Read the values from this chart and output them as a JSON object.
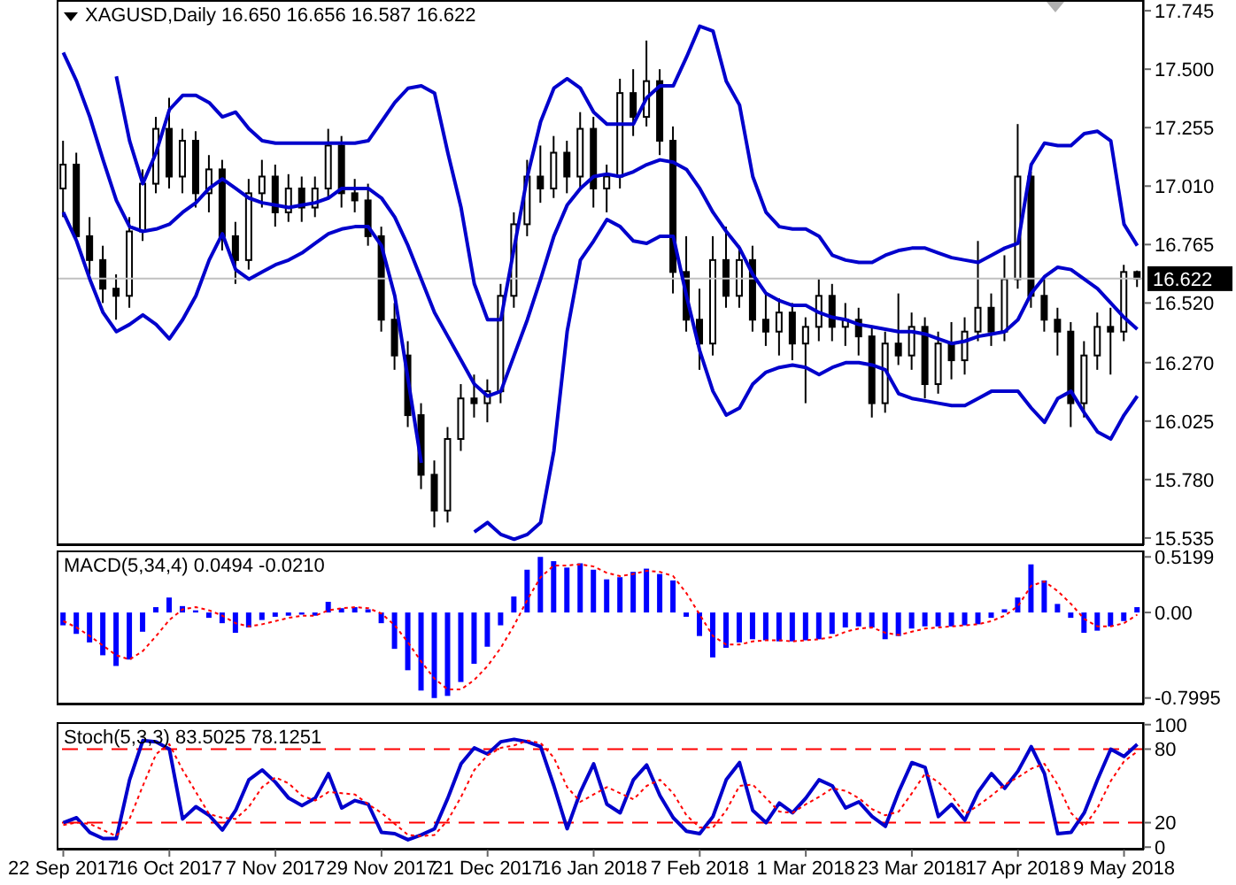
{
  "chart_data": [
    {
      "type": "candlestick",
      "title": "XAGUSD,Daily 16.650 16.656 16.587 16.622",
      "tick_labels": "y",
      "categories": [
        null,
        null,
        null,
        null,
        null,
        null,
        null,
        null,
        null,
        null,
        null,
        null,
        null,
        null,
        null,
        null,
        null,
        null,
        null,
        null,
        null,
        null,
        null,
        null,
        null,
        null,
        null,
        null,
        null,
        null,
        null,
        null,
        null,
        null,
        null,
        null,
        null,
        null,
        null,
        null,
        null,
        null,
        null,
        null,
        null,
        null,
        null,
        null,
        null,
        null,
        null,
        null,
        null,
        null,
        null,
        null,
        null,
        null,
        null,
        null,
        null,
        null,
        null,
        null,
        null,
        null,
        null,
        null,
        null,
        null,
        null,
        null,
        null,
        null,
        null,
        null,
        null,
        null,
        null,
        null,
        null,
        null
      ],
      "ylim": [
        15.505,
        17.79
      ],
      "yticks": [
        15.535,
        {
          "value": 15.78,
          "label": "15.780"
        },
        16.025,
        {
          "value": 16.27,
          "label": "16.270"
        },
        {
          "value": 16.52,
          "label": "16.520"
        },
        16.765,
        {
          "value": 17.01,
          "label": "17.010"
        },
        17.255,
        {
          "value": 17.5,
          "label": "17.500"
        },
        17.745
      ],
      "ref_lines": [
        {
          "axis": "y",
          "value": 16.622,
          "label": "16.622",
          "color": "#c0c0c0"
        }
      ],
      "series": [
        {
          "color": "#000000",
          "ohlc": [
            [
              17.0,
              17.2,
              16.88,
              17.1
            ],
            [
              17.1,
              17.15,
              16.78,
              16.8
            ],
            [
              16.8,
              16.88,
              16.64,
              16.7
            ],
            [
              16.7,
              16.76,
              16.52,
              16.58
            ],
            [
              16.58,
              16.64,
              16.45,
              16.55
            ],
            [
              16.55,
              16.88,
              16.5,
              16.82
            ],
            [
              16.82,
              17.08,
              16.78,
              17.02
            ],
            [
              17.02,
              17.3,
              16.98,
              17.25
            ],
            [
              17.25,
              17.38,
              17.0,
              17.05
            ],
            [
              17.05,
              17.25,
              16.98,
              17.2
            ],
            [
              17.2,
              17.24,
              16.92,
              16.98
            ],
            [
              16.98,
              17.14,
              16.9,
              17.08
            ],
            [
              17.08,
              17.12,
              16.74,
              16.8
            ],
            [
              16.8,
              16.86,
              16.6,
              16.7
            ],
            [
              16.7,
              17.04,
              16.66,
              16.98
            ],
            [
              16.98,
              17.12,
              16.92,
              17.05
            ],
            [
              17.05,
              17.1,
              16.84,
              16.9
            ],
            [
              16.9,
              17.06,
              16.86,
              17.0
            ],
            [
              17.0,
              17.05,
              16.86,
              16.92
            ],
            [
              16.92,
              17.05,
              16.88,
              17.0
            ],
            [
              17.0,
              17.25,
              16.96,
              17.18
            ],
            [
              17.18,
              17.22,
              16.92,
              16.98
            ],
            [
              16.98,
              17.04,
              16.9,
              16.95
            ],
            [
              16.95,
              17.02,
              16.76,
              16.8
            ],
            [
              16.8,
              16.84,
              16.4,
              16.45
            ],
            [
              16.45,
              16.52,
              16.24,
              16.3
            ],
            [
              16.3,
              16.36,
              16.0,
              16.05
            ],
            [
              16.05,
              16.1,
              15.74,
              15.8
            ],
            [
              15.8,
              15.86,
              15.58,
              15.65
            ],
            [
              15.65,
              16.0,
              15.6,
              15.95
            ],
            [
              15.95,
              16.18,
              15.9,
              16.12
            ],
            [
              16.12,
              16.22,
              16.04,
              16.1
            ],
            [
              16.1,
              16.2,
              16.02,
              16.15
            ],
            [
              16.15,
              16.6,
              16.1,
              16.55
            ],
            [
              16.55,
              16.9,
              16.5,
              16.85
            ],
            [
              16.85,
              17.12,
              16.8,
              17.05
            ],
            [
              17.05,
              17.18,
              16.94,
              17.0
            ],
            [
              17.0,
              17.22,
              16.96,
              17.15
            ],
            [
              17.15,
              17.2,
              16.98,
              17.05
            ],
            [
              17.05,
              17.32,
              17.0,
              17.25
            ],
            [
              17.25,
              17.3,
              16.92,
              17.0
            ],
            [
              17.0,
              17.1,
              16.9,
              17.05
            ],
            [
              17.05,
              17.46,
              17.0,
              17.4
            ],
            [
              17.4,
              17.5,
              17.22,
              17.3
            ],
            [
              17.3,
              17.62,
              17.26,
              17.45
            ],
            [
              17.45,
              17.5,
              17.14,
              17.2
            ],
            [
              17.2,
              17.26,
              16.56,
              16.65
            ],
            [
              16.65,
              16.8,
              16.4,
              16.45
            ],
            [
              16.45,
              16.58,
              16.24,
              16.35
            ],
            [
              16.35,
              16.8,
              16.3,
              16.7
            ],
            [
              16.7,
              16.84,
              16.5,
              16.55
            ],
            [
              16.55,
              16.76,
              16.5,
              16.7
            ],
            [
              16.7,
              16.76,
              16.4,
              16.45
            ],
            [
              16.45,
              16.56,
              16.34,
              16.4
            ],
            [
              16.4,
              16.54,
              16.3,
              16.48
            ],
            [
              16.48,
              16.52,
              16.28,
              16.35
            ],
            [
              16.35,
              16.46,
              16.1,
              16.42
            ],
            [
              16.42,
              16.62,
              16.36,
              16.55
            ],
            [
              16.55,
              16.6,
              16.36,
              16.42
            ],
            [
              16.42,
              16.52,
              16.34,
              16.45
            ],
            [
              16.45,
              16.5,
              16.3,
              16.38
            ],
            [
              16.38,
              16.42,
              16.04,
              16.1
            ],
            [
              16.1,
              16.4,
              16.06,
              16.35
            ],
            [
              16.35,
              16.56,
              16.26,
              16.3
            ],
            [
              16.3,
              16.48,
              16.24,
              16.42
            ],
            [
              16.42,
              16.46,
              16.12,
              16.18
            ],
            [
              16.18,
              16.4,
              16.14,
              16.35
            ],
            [
              16.35,
              16.44,
              16.2,
              16.28
            ],
            [
              16.28,
              16.46,
              16.22,
              16.4
            ],
            [
              16.4,
              16.78,
              16.36,
              16.5
            ],
            [
              16.5,
              16.56,
              16.34,
              16.4
            ],
            [
              16.4,
              16.72,
              16.36,
              16.62
            ],
            [
              16.62,
              17.27,
              16.58,
              17.05
            ],
            [
              17.05,
              17.07,
              16.5,
              16.55
            ],
            [
              16.55,
              16.62,
              16.4,
              16.45
            ],
            [
              16.45,
              16.5,
              16.3,
              16.4
            ],
            [
              16.4,
              16.44,
              16.0,
              16.1
            ],
            [
              16.1,
              16.36,
              16.04,
              16.3
            ],
            [
              16.3,
              16.48,
              16.24,
              16.42
            ],
            [
              16.42,
              16.5,
              16.22,
              16.4
            ],
            [
              16.4,
              16.68,
              16.36,
              16.65
            ],
            [
              16.65,
              16.656,
              16.587,
              16.622
            ]
          ]
        },
        {
          "type": "line",
          "color": "#0000cc",
          "values": [
            null,
            null,
            null,
            null,
            17.47,
            17.2,
            17.02,
            17.15,
            17.33,
            17.39,
            17.39,
            17.36,
            17.3,
            17.32,
            17.25,
            17.2,
            17.19,
            17.19,
            17.19,
            17.19,
            17.19,
            17.19,
            17.19,
            17.2,
            17.28,
            17.36,
            17.42,
            17.43,
            17.4,
            17.15,
            16.92,
            16.6,
            16.45,
            16.45,
            16.75,
            17.05,
            17.28,
            17.42,
            17.46,
            17.42,
            17.32,
            17.27,
            17.27,
            17.27,
            17.38,
            17.43,
            17.43,
            17.55,
            17.68,
            17.66,
            17.45,
            17.35,
            17.05,
            16.9,
            16.84,
            16.83,
            16.83,
            16.8,
            16.72,
            16.7,
            16.69,
            16.69,
            16.72,
            16.74,
            16.75,
            16.75,
            16.73,
            16.71,
            16.7,
            16.69,
            16.72,
            16.75,
            16.77,
            17.1,
            17.19,
            17.18,
            17.18,
            17.23,
            17.24,
            17.2,
            16.85,
            16.76
          ]
        },
        {
          "type": "line",
          "color": "#0000cc",
          "values": [
            17.57,
            17.45,
            17.3,
            17.12,
            16.95,
            16.84,
            16.82,
            16.83,
            16.85,
            16.9,
            16.94,
            17.0,
            17.04,
            17.0,
            16.96,
            16.94,
            16.93,
            16.92,
            16.93,
            16.94,
            16.96,
            17.0,
            17.0,
            17.0,
            16.96,
            16.88,
            16.76,
            16.62,
            16.48,
            16.38,
            16.28,
            16.18,
            16.13,
            16.15,
            16.3,
            16.45,
            16.62,
            16.8,
            16.93,
            17.0,
            17.05,
            17.06,
            17.05,
            17.07,
            17.1,
            17.12,
            17.11,
            17.08,
            17.0,
            16.9,
            16.82,
            16.75,
            16.64,
            16.56,
            16.53,
            16.51,
            16.51,
            16.48,
            16.46,
            16.45,
            16.43,
            16.42,
            16.41,
            16.4,
            16.4,
            16.39,
            16.37,
            16.35,
            16.36,
            16.38,
            16.39,
            16.4,
            16.45,
            16.56,
            16.63,
            16.67,
            16.66,
            16.62,
            16.58,
            16.52,
            16.46,
            16.41
          ]
        },
        {
          "type": "line",
          "color": "#0000cc",
          "values": [
            16.9,
            16.78,
            16.62,
            16.48,
            16.4,
            16.43,
            16.47,
            16.43,
            16.37,
            16.45,
            16.55,
            16.7,
            16.81,
            16.66,
            16.62,
            16.65,
            16.68,
            16.7,
            16.73,
            16.77,
            16.81,
            16.83,
            16.84,
            16.84,
            16.76,
            16.55,
            16.2,
            15.85,
            null,
            null,
            null,
            15.56,
            15.6,
            15.55,
            15.53,
            15.55,
            15.6,
            15.9,
            16.4,
            16.7,
            16.78,
            16.87,
            16.84,
            16.78,
            16.77,
            16.8,
            16.8,
            16.55,
            16.32,
            16.15,
            16.05,
            16.08,
            16.18,
            16.23,
            16.25,
            16.26,
            16.25,
            16.22,
            16.25,
            16.27,
            16.27,
            16.26,
            16.24,
            16.14,
            16.12,
            16.11,
            16.1,
            16.09,
            16.09,
            16.12,
            16.15,
            16.15,
            16.15,
            16.08,
            16.02,
            16.12,
            16.15,
            16.06,
            15.98,
            15.95,
            16.05,
            16.13
          ]
        }
      ]
    },
    {
      "type": "bar",
      "title": "MACD(5,34,4) 0.0494 -0.0210",
      "tick_labels": "y",
      "categories": [
        null,
        null,
        null,
        null,
        null,
        null,
        null,
        null,
        null,
        null,
        null,
        null,
        null,
        null,
        null,
        null,
        null,
        null,
        null,
        null,
        null,
        null,
        null,
        null,
        null,
        null,
        null,
        null,
        null,
        null,
        null,
        null,
        null,
        null,
        null,
        null,
        null,
        null,
        null,
        null,
        null,
        null,
        null,
        null,
        null,
        null,
        null,
        null,
        null,
        null,
        null,
        null,
        null,
        null,
        null,
        null,
        null,
        null,
        null,
        null,
        null,
        null,
        null,
        null,
        null,
        null,
        null,
        null,
        null,
        null,
        null,
        null,
        null,
        null,
        null,
        null,
        null,
        null,
        null,
        null,
        null,
        null
      ],
      "ylim": [
        -0.86,
        0.58
      ],
      "yticks": [
        -0.7995,
        {
          "value": 0,
          "label": "0.00"
        },
        0.5199
      ],
      "series": [
        {
          "color": "#0000ff",
          "values": [
            -0.12,
            -0.2,
            -0.28,
            -0.4,
            -0.5,
            -0.44,
            -0.18,
            0.05,
            0.14,
            0.06,
            0.02,
            -0.05,
            -0.1,
            -0.19,
            -0.14,
            -0.07,
            -0.04,
            -0.03,
            -0.02,
            -0.03,
            0.1,
            0.04,
            0.05,
            0.03,
            -0.1,
            -0.34,
            -0.54,
            -0.73,
            -0.8,
            -0.78,
            -0.65,
            -0.48,
            -0.32,
            -0.12,
            0.15,
            0.4,
            0.52,
            0.48,
            0.42,
            0.46,
            0.4,
            0.31,
            0.33,
            0.38,
            0.41,
            0.36,
            0.3,
            -0.04,
            -0.22,
            -0.42,
            -0.33,
            -0.28,
            -0.25,
            -0.26,
            -0.27,
            -0.27,
            -0.26,
            -0.25,
            -0.2,
            -0.14,
            -0.13,
            -0.14,
            -0.25,
            -0.22,
            -0.15,
            -0.13,
            -0.13,
            -0.13,
            -0.12,
            -0.11,
            -0.05,
            0.03,
            0.14,
            0.45,
            0.3,
            0.08,
            -0.05,
            -0.19,
            -0.17,
            -0.13,
            -0.08,
            0.05
          ]
        },
        {
          "type": "line",
          "color": "#ff0000",
          "line_style": "dotted",
          "values": [
            -0.08,
            -0.14,
            -0.22,
            -0.31,
            -0.4,
            -0.44,
            -0.36,
            -0.22,
            -0.07,
            0.03,
            0.05,
            0.02,
            -0.03,
            -0.1,
            -0.13,
            -0.11,
            -0.08,
            -0.05,
            -0.03,
            -0.03,
            0.02,
            0.04,
            0.05,
            0.04,
            -0.01,
            -0.12,
            -0.28,
            -0.46,
            -0.62,
            -0.72,
            -0.72,
            -0.63,
            -0.5,
            -0.33,
            -0.12,
            0.12,
            0.33,
            0.44,
            0.44,
            0.45,
            0.43,
            0.37,
            0.34,
            0.36,
            0.39,
            0.38,
            0.34,
            0.18,
            -0.02,
            -0.22,
            -0.3,
            -0.3,
            -0.27,
            -0.26,
            -0.26,
            -0.27,
            -0.26,
            -0.25,
            -0.23,
            -0.18,
            -0.15,
            -0.14,
            -0.19,
            -0.21,
            -0.18,
            -0.15,
            -0.14,
            -0.13,
            -0.12,
            -0.11,
            -0.08,
            -0.03,
            0.06,
            0.25,
            0.29,
            0.2,
            0.08,
            -0.06,
            -0.13,
            -0.13,
            -0.1,
            -0.02
          ]
        }
      ]
    },
    {
      "type": "line",
      "title": "Stoch(5,3,3) 83.5025 78.1251",
      "categories": [
        "22 Sep 2017",
        null,
        null,
        null,
        null,
        null,
        null,
        null,
        "16 Oct 2017",
        null,
        null,
        null,
        null,
        null,
        null,
        null,
        "7 Nov 2017",
        null,
        null,
        null,
        null,
        null,
        null,
        null,
        "29 Nov 2017",
        null,
        null,
        null,
        null,
        null,
        null,
        null,
        "21 Dec 2017",
        null,
        null,
        null,
        null,
        null,
        null,
        null,
        "16 Jan 2018",
        null,
        null,
        null,
        null,
        null,
        null,
        null,
        "7 Feb 2018",
        null,
        null,
        null,
        null,
        null,
        null,
        null,
        "1 Mar 2018",
        null,
        null,
        null,
        null,
        null,
        null,
        null,
        "23 Mar 2018",
        null,
        null,
        null,
        null,
        null,
        null,
        null,
        "17 Apr 2018",
        null,
        null,
        null,
        null,
        null,
        null,
        null,
        "9 May 2018",
        null
      ],
      "ylim": [
        -2,
        102
      ],
      "yticks": [
        0,
        20,
        80,
        100
      ],
      "ref_lines": [
        {
          "axis": "y",
          "value": 20,
          "color": "#ff0000",
          "line_style": "dashed"
        },
        {
          "axis": "y",
          "value": 80,
          "color": "#ff0000",
          "line_style": "dashed"
        }
      ],
      "series": [
        {
          "color": "#0000cc",
          "values": [
            20,
            24,
            12,
            7,
            7,
            55,
            87,
            86,
            80,
            23,
            33,
            26,
            14,
            30,
            55,
            63,
            53,
            40,
            34,
            40,
            60,
            32,
            38,
            35,
            12,
            11,
            6,
            10,
            15,
            40,
            68,
            81,
            76,
            86,
            88,
            86,
            82,
            50,
            15,
            45,
            68,
            35,
            28,
            55,
            67,
            42,
            24,
            13,
            11,
            25,
            55,
            69,
            30,
            20,
            36,
            28,
            40,
            55,
            50,
            32,
            37,
            25,
            17,
            45,
            69,
            65,
            25,
            35,
            22,
            45,
            60,
            48,
            62,
            82,
            60,
            11,
            12,
            28,
            55,
            80,
            74,
            84
          ]
        },
        {
          "color": "#ff0000",
          "line_style": "dotted",
          "values": [
            18,
            20,
            19,
            14,
            9,
            23,
            50,
            76,
            84,
            63,
            45,
            27,
            24,
            23,
            33,
            49,
            57,
            52,
            42,
            38,
            45,
            44,
            43,
            35,
            28,
            19,
            10,
            9,
            10,
            22,
            41,
            63,
            75,
            81,
            83,
            87,
            85,
            73,
            49,
            37,
            43,
            49,
            44,
            39,
            50,
            55,
            44,
            26,
            16,
            16,
            30,
            50,
            51,
            40,
            29,
            28,
            35,
            41,
            48,
            46,
            40,
            31,
            26,
            29,
            44,
            60,
            53,
            42,
            27,
            34,
            42,
            51,
            57,
            64,
            68,
            51,
            28,
            17,
            32,
            54,
            70,
            78
          ]
        }
      ]
    }
  ]
}
